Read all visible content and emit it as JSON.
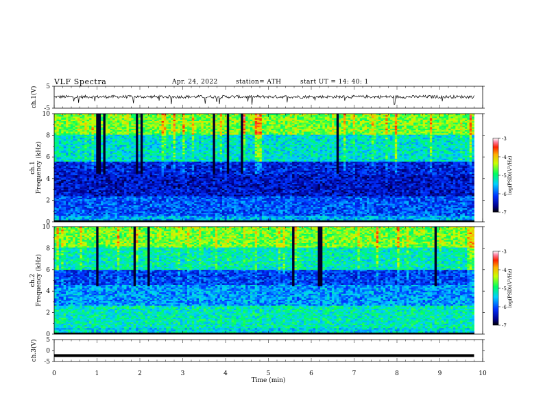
{
  "header": {
    "title": "VLF  Spectra",
    "date": "Apr. 24, 2022",
    "station": "station= ATH",
    "start": "start  UT  =    14: 40: 1"
  },
  "chart_data": [
    {
      "type": "line",
      "id": "ch1-waveform",
      "ylabel": "ch.1(V)",
      "ylim": [
        -5,
        5
      ],
      "yticks": [
        5,
        -5
      ],
      "xlim": [
        0,
        10
      ],
      "x_end": 9.8,
      "baseline": 0.2,
      "amplitude": 0.7,
      "description_series": "black noisy waveform with occasional downward spikes"
    },
    {
      "type": "heatmap",
      "id": "ch1-spectrogram",
      "ylabel_top": "ch.1",
      "ylabel": "Frequency  (kHz)",
      "ylim": [
        0,
        10
      ],
      "yticks": [
        0,
        2,
        4,
        6,
        8,
        10
      ],
      "xlim": [
        0,
        10
      ],
      "x_end": 9.8,
      "colorbar": {
        "label": "log(PSD)(V²/Hz)",
        "range": [
          -7,
          -3
        ],
        "ticks": [
          -3,
          -4,
          -5,
          -6,
          -7
        ]
      },
      "bands": [
        {
          "from": 0.0,
          "to": 0.5,
          "level": -5.6
        },
        {
          "from": 0.5,
          "to": 2.3,
          "level": -6.0
        },
        {
          "from": 2.3,
          "to": 4.3,
          "level": -6.4
        },
        {
          "from": 4.3,
          "to": 5.5,
          "level": -6.3
        },
        {
          "from": 5.5,
          "to": 8.0,
          "level": -5.3
        },
        {
          "from": 8.0,
          "to": 10.0,
          "level": -4.6
        }
      ]
    },
    {
      "type": "heatmap",
      "id": "ch2-spectrogram",
      "ylabel_top": "ch.2",
      "ylabel": "Frequency  (kHz)",
      "ylim": [
        0,
        10
      ],
      "yticks": [
        0,
        2,
        4,
        6,
        8,
        10
      ],
      "xlim": [
        0,
        10
      ],
      "x_end": 9.8,
      "colorbar": {
        "label": "log(PSD)(V²/Hz)",
        "range": [
          -7,
          -3
        ],
        "ticks": [
          -3,
          -4,
          -5,
          -6,
          -7
        ]
      },
      "bands": [
        {
          "from": 0.0,
          "to": 0.5,
          "level": -5.4
        },
        {
          "from": 0.5,
          "to": 2.6,
          "level": -5.2
        },
        {
          "from": 2.6,
          "to": 4.6,
          "level": -5.7
        },
        {
          "from": 4.6,
          "to": 6.0,
          "level": -6.1
        },
        {
          "from": 6.0,
          "to": 8.0,
          "level": -5.2
        },
        {
          "from": 8.0,
          "to": 10.0,
          "level": -4.6
        }
      ]
    },
    {
      "type": "line",
      "id": "ch3-waveform",
      "ylabel": "ch.3(V)",
      "ylim": [
        -5,
        5
      ],
      "yticks": [
        5,
        0,
        -5
      ],
      "xlim": [
        0,
        10
      ],
      "x_end": 9.8,
      "baseline": -2.3,
      "description_series": "flat thick black line"
    }
  ],
  "xaxis": {
    "label": "Time  (min)",
    "ticks": [
      0,
      1,
      2,
      3,
      4,
      5,
      6,
      7,
      8,
      9,
      10
    ]
  }
}
